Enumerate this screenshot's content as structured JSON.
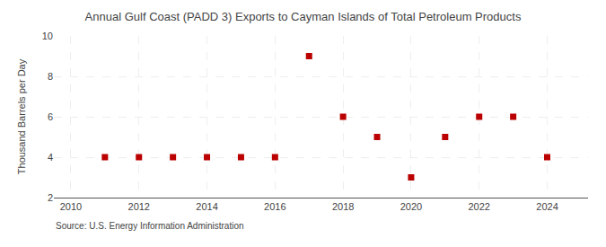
{
  "chart_data": {
    "type": "scatter",
    "title": "Annual Gulf Coast (PADD 3) Exports to Cayman Islands of Total Petroleum Products",
    "ylabel": "Thousand Barrels per Day",
    "annotation": "Source: U.S. Energy Information Administration",
    "x": [
      2011,
      2012,
      2013,
      2014,
      2015,
      2016,
      2017,
      2018,
      2019,
      2020,
      2021,
      2022,
      2023,
      2024
    ],
    "values": [
      4,
      4,
      4,
      4,
      4,
      4,
      9,
      6,
      5,
      3,
      5,
      6,
      6,
      4
    ],
    "color": "#bb0000",
    "marker": "square",
    "xlim": [
      2009.5,
      2025.2
    ],
    "xticks": [
      2010,
      2012,
      2014,
      2016,
      2018,
      2020,
      2022,
      2024
    ],
    "ylim": [
      2,
      10
    ],
    "yticks": [
      2,
      4,
      6,
      8,
      10
    ],
    "grid": true
  }
}
